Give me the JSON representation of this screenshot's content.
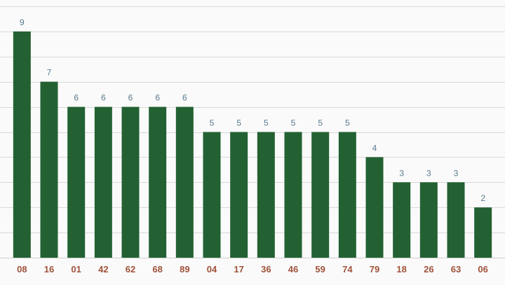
{
  "chart_data": {
    "type": "bar",
    "categories": [
      "08",
      "16",
      "01",
      "42",
      "62",
      "68",
      "89",
      "04",
      "17",
      "36",
      "46",
      "59",
      "74",
      "79",
      "18",
      "26",
      "63",
      "06"
    ],
    "values": [
      9,
      7,
      6,
      6,
      6,
      6,
      6,
      5,
      5,
      5,
      5,
      5,
      5,
      4,
      3,
      3,
      3,
      2
    ],
    "ylim": [
      0,
      10
    ],
    "grid": true,
    "data_labels": true,
    "colors": {
      "bar": "#236133",
      "value_label": "#5a7a8c",
      "tick_label": "#a0523a",
      "grid": "#d9d9d9",
      "background": "#fafafa"
    }
  }
}
